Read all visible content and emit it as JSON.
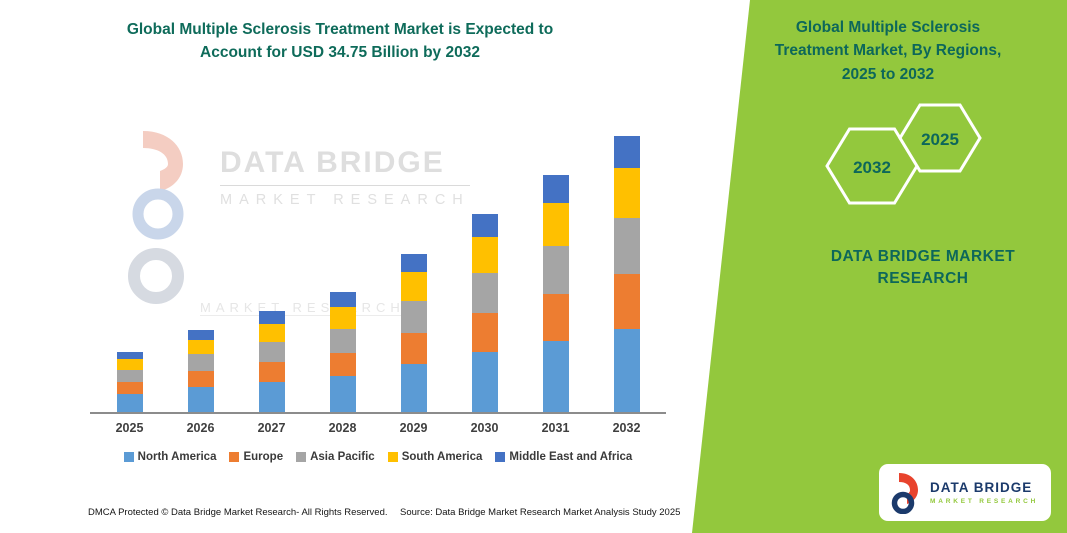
{
  "header": {
    "title": "Global Multiple Sclerosis Treatment Market is Expected to\nAccount for USD 34.75 Billion by 2032"
  },
  "panel": {
    "title": "Global Multiple Sclerosis\nTreatment Market, By Regions,\n2025 to 2032",
    "hexagon_left": "2032",
    "hexagon_right": "2025",
    "brand": "DATA BRIDGE MARKET\nRESEARCH",
    "colors": {
      "background": "#93C83D",
      "title_text": "#0D675A"
    }
  },
  "watermark": {
    "line1": "DATA BRIDGE",
    "line2": "MARKET RESEARCH"
  },
  "logo": {
    "wordmark": "DATA BRIDGE",
    "subtitle": "MARKET RESEARCH",
    "colors": {
      "navy": "#1B3A6B",
      "red": "#E8432D",
      "green": "#93C83D"
    }
  },
  "footer": {
    "dmca": "DMCA Protected © Data Bridge Market Research-  All Rights Reserved.",
    "source": "Source: Data Bridge Market Research  Market Analysis Study 2025"
  },
  "chart_data": {
    "type": "bar",
    "stacked": true,
    "title": "Global Multiple Sclerosis Treatment Market is Expected to Account for USD 34.75 Billion by 2032",
    "unit": "USD Billion",
    "categories": [
      "2025",
      "2026",
      "2027",
      "2028",
      "2029",
      "2030",
      "2031",
      "2032"
    ],
    "series": [
      {
        "name": "North America",
        "color": "#5B9BD5",
        "values": [
          2.3,
          3.1,
          3.8,
          4.5,
          6.0,
          7.5,
          8.9,
          10.4
        ]
      },
      {
        "name": "Europe",
        "color": "#ED7D31",
        "values": [
          1.5,
          2.1,
          2.5,
          3.0,
          4.0,
          5.0,
          6.0,
          7.0
        ]
      },
      {
        "name": "Asia Pacific",
        "color": "#A5A5A5",
        "values": [
          1.5,
          2.1,
          2.5,
          3.0,
          4.0,
          5.0,
          6.0,
          7.0
        ]
      },
      {
        "name": "South America",
        "color": "#FFC000",
        "values": [
          1.4,
          1.8,
          2.3,
          2.7,
          3.6,
          4.5,
          5.4,
          6.3
        ]
      },
      {
        "name": "Middle East and Africa",
        "color": "#4472C4",
        "values": [
          0.9,
          1.2,
          1.6,
          1.9,
          2.3,
          2.9,
          3.5,
          4.05
        ]
      }
    ],
    "totals": [
      7.6,
      10.3,
      12.7,
      15.1,
      19.9,
      24.9,
      29.8,
      34.75
    ],
    "ylim": [
      0,
      35
    ],
    "value_axis_visible": false,
    "grid": false,
    "legend_position": "bottom"
  }
}
